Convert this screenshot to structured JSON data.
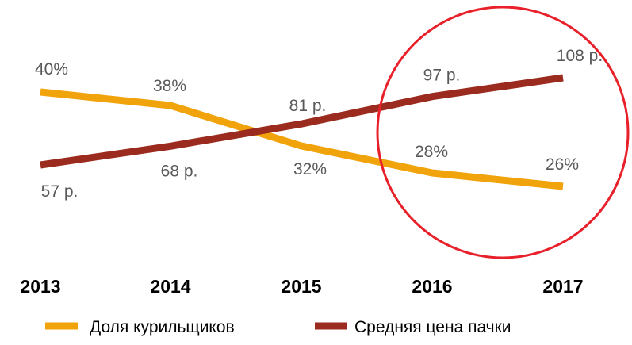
{
  "chart_data": {
    "type": "line",
    "categories": [
      "2013",
      "2014",
      "2015",
      "2016",
      "2017"
    ],
    "series": [
      {
        "name": "Доля курильщиков",
        "values": [
          40,
          38,
          32,
          28,
          26
        ],
        "labels": [
          "40%",
          "38%",
          "32%",
          "28%",
          "26%"
        ],
        "color": "#F0A30A"
      },
      {
        "name": "Средняя цена пачки",
        "values": [
          57,
          68,
          81,
          97,
          108
        ],
        "labels": [
          "57 р.",
          "68 р.",
          "81 р.",
          "97 р.",
          "108 р."
        ],
        "color": "#9B2B1E"
      }
    ],
    "grid": false,
    "legend_position": "bottom",
    "annotation": {
      "shape": "circle",
      "highlights": [
        "2016",
        "2017"
      ],
      "color": "#E8202A"
    }
  }
}
